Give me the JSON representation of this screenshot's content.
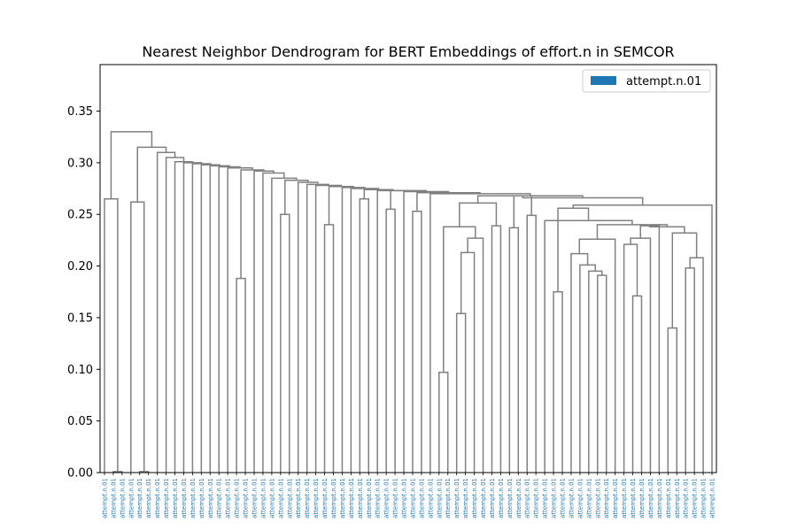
{
  "chart_data": {
    "type": "dendrogram",
    "title": "Nearest Neighbor Dendrogram for BERT Embeddings of effort.n in SEMCOR",
    "xlabel": "",
    "ylabel": "",
    "ylim": [
      0,
      0.395
    ],
    "y_ticks": [
      "0.00",
      "0.05",
      "0.10",
      "0.15",
      "0.20",
      "0.25",
      "0.30",
      "0.35"
    ],
    "y_tick_values": [
      0,
      0.05,
      0.1,
      0.15,
      0.2,
      0.25,
      0.3,
      0.35
    ],
    "leaf_label": "attempt.n.01",
    "leaf_count": 70,
    "legend": [
      {
        "label": "attempt.n.01",
        "color": "#1f77b4"
      }
    ],
    "legend_position": "top-right",
    "link_color": "#808080",
    "leaf_label_color": "#1f77b4",
    "merges": [
      {
        "a": 0,
        "b": 1,
        "h": 0.001
      },
      {
        "a": 13,
        "b": 14,
        "h": 0.097
      },
      {
        "a": 15,
        "b": 16,
        "h": 0.001
      },
      {
        "a": 23,
        "b": 24,
        "h": 0.001
      },
      {
        "a": 27,
        "b": 28,
        "h": 0.001
      },
      {
        "a": 64,
        "b": 65,
        "h": 0.141
      },
      {
        "a": 56,
        "b": 57,
        "h": 0.172
      },
      {
        "a": 61,
        "b": 62,
        "h": 0.192
      },
      {
        "a": 60,
        "b": 78,
        "h": 0.195
      },
      {
        "a": 59,
        "b": 79,
        "h": 0.201
      },
      {
        "a": 18,
        "b": 19,
        "h": 0.188
      },
      {
        "a": 58,
        "b": 80,
        "h": 0.212
      },
      {
        "a": 17,
        "b": 71,
        "h": 0.154
      },
      {
        "a": 67,
        "b": 68,
        "h": 0.199
      },
      {
        "a": 66,
        "b": 84,
        "h": 0.208
      },
      {
        "a": 52,
        "b": 53,
        "h": 0.215
      },
      {
        "a": 10,
        "b": 73,
        "h": 0.001
      },
      {
        "a": 54,
        "b": 55,
        "h": 0.221
      },
      {
        "a": 63,
        "b": 76,
        "h": 0.234
      },
      {
        "a": 86,
        "b": 88,
        "h": 0.218
      },
      {
        "a": 50,
        "b": 51,
        "h": 0.226
      },
      {
        "a": 83,
        "b": 85,
        "h": 0.228
      },
      {
        "a": 90,
        "b": 91,
        "h": 0.238
      },
      {
        "a": 89,
        "b": 92,
        "h": 0.24
      },
      {
        "a": 74,
        "b": 75,
        "h": 0.262
      },
      {
        "a": 25,
        "b": 26,
        "h": 0.24
      },
      {
        "a": 32,
        "b": 33,
        "h": 0.238
      },
      {
        "a": 81,
        "b": 82,
        "h": 0.238
      },
      {
        "a": 12,
        "b": 87,
        "h": 0.239
      },
      {
        "a": 34,
        "b": 35,
        "h": 0.001
      },
      {
        "a": 36,
        "b": 37,
        "h": 0.237
      },
      {
        "a": 38,
        "b": 39,
        "h": 0.25
      },
      {
        "a": 40,
        "b": 41,
        "h": 0.001
      },
      {
        "a": 21,
        "b": 22,
        "h": 0.255
      },
      {
        "a": 43,
        "b": 44,
        "h": 0.175
      },
      {
        "a": 96,
        "b": 97,
        "h": 0.001
      },
      {
        "a": 4,
        "b": 5,
        "h": 0.001
      },
      {
        "a": 8,
        "b": 9,
        "h": 0.001
      },
      {
        "a": 98,
        "b": 99,
        "h": 0.001
      },
      {
        "a": 2,
        "b": 3,
        "h": 0.265
      },
      {
        "a": 11,
        "b": 95,
        "h": 0.001
      },
      {
        "a": 93,
        "b": 94,
        "h": 0.001
      },
      {
        "a": 42,
        "b": 100,
        "h": 0.001
      },
      {
        "a": 45,
        "b": 46,
        "h": 0.218
      },
      {
        "a": 47,
        "b": 113,
        "h": 0.001
      },
      {
        "a": 6,
        "b": 7,
        "h": 0.001
      },
      {
        "a": 49,
        "b": 101,
        "h": 0.001
      },
      {
        "a": 29,
        "b": 30,
        "h": 0.001
      },
      {
        "a": 31,
        "b": 102,
        "h": 0.001
      },
      {
        "a": 48,
        "b": 114,
        "h": 0.001
      },
      {
        "a": 20,
        "b": 103,
        "h": 0.001
      },
      {
        "a": 72,
        "b": 104,
        "h": 0.001
      },
      {
        "a": 69,
        "b": 70,
        "h": 0.001
      },
      {
        "a": 77,
        "b": 105,
        "h": 0.001
      },
      {
        "a": 106,
        "b": 107,
        "h": 0.001
      },
      {
        "a": 108,
        "b": 109,
        "h": 0.001
      },
      {
        "a": 110,
        "b": 111,
        "h": 0.001
      },
      {
        "a": 112,
        "b": 115,
        "h": 0.001
      },
      {
        "a": 116,
        "b": 117,
        "h": 0.001
      },
      {
        "a": 118,
        "b": 119,
        "h": 0.001
      },
      {
        "a": 120,
        "b": 121,
        "h": 0.001
      },
      {
        "a": 122,
        "b": 123,
        "h": 0.001
      },
      {
        "a": 124,
        "b": 125,
        "h": 0.001
      },
      {
        "a": 126,
        "b": 127,
        "h": 0.001
      },
      {
        "a": 128,
        "b": 129,
        "h": 0.001
      },
      {
        "a": 130,
        "b": 131,
        "h": 0.001
      },
      {
        "a": 132,
        "b": 133,
        "h": 0.001
      },
      {
        "a": 134,
        "b": 135,
        "h": 0.001
      },
      {
        "a": 136,
        "b": 137,
        "h": 0.001
      }
    ],
    "links": [
      {
        "xl": 1,
        "xr": 2,
        "hl": 0,
        "hr": 0.265,
        "h": 0.265
      },
      {
        "xl": 3,
        "xr": 4,
        "hl": 0,
        "hr": 0.001,
        "h": 0.001
      },
      {
        "xl": 5,
        "xr": 6,
        "hl": 0,
        "hr": 0.001,
        "h": 0.001
      },
      {
        "xl": 6.5,
        "xr": 7,
        "hl": 0,
        "hr": 0.262,
        "h": 0.262
      },
      {
        "xl": 27,
        "xr": 28,
        "hl": 0,
        "hr": 0.188,
        "h": 0.188
      },
      {
        "xl": 39.5,
        "xr": 40,
        "hl": 0,
        "hr": 0.25,
        "h": 0.25
      },
      {
        "xl": 48,
        "xr": 49,
        "hl": 0,
        "hr": 0.24,
        "h": 0.24
      },
      {
        "xl": 52,
        "xr": 53,
        "hl": 0,
        "hr": 0.265,
        "h": 0.265
      },
      {
        "xl": 57,
        "xr": 58,
        "hl": 0,
        "hr": 0.255,
        "h": 0.255
      },
      {
        "xl": 60,
        "xr": 61,
        "hl": 0,
        "hr": 0.253,
        "h": 0.253
      },
      {
        "xl": 66,
        "xr": 67,
        "hl": 0,
        "hr": 0.097,
        "h": 0.097
      },
      {
        "xl": 68,
        "xr": 69,
        "hl": 0,
        "hr": 0.154,
        "h": 0.154
      }
    ]
  }
}
